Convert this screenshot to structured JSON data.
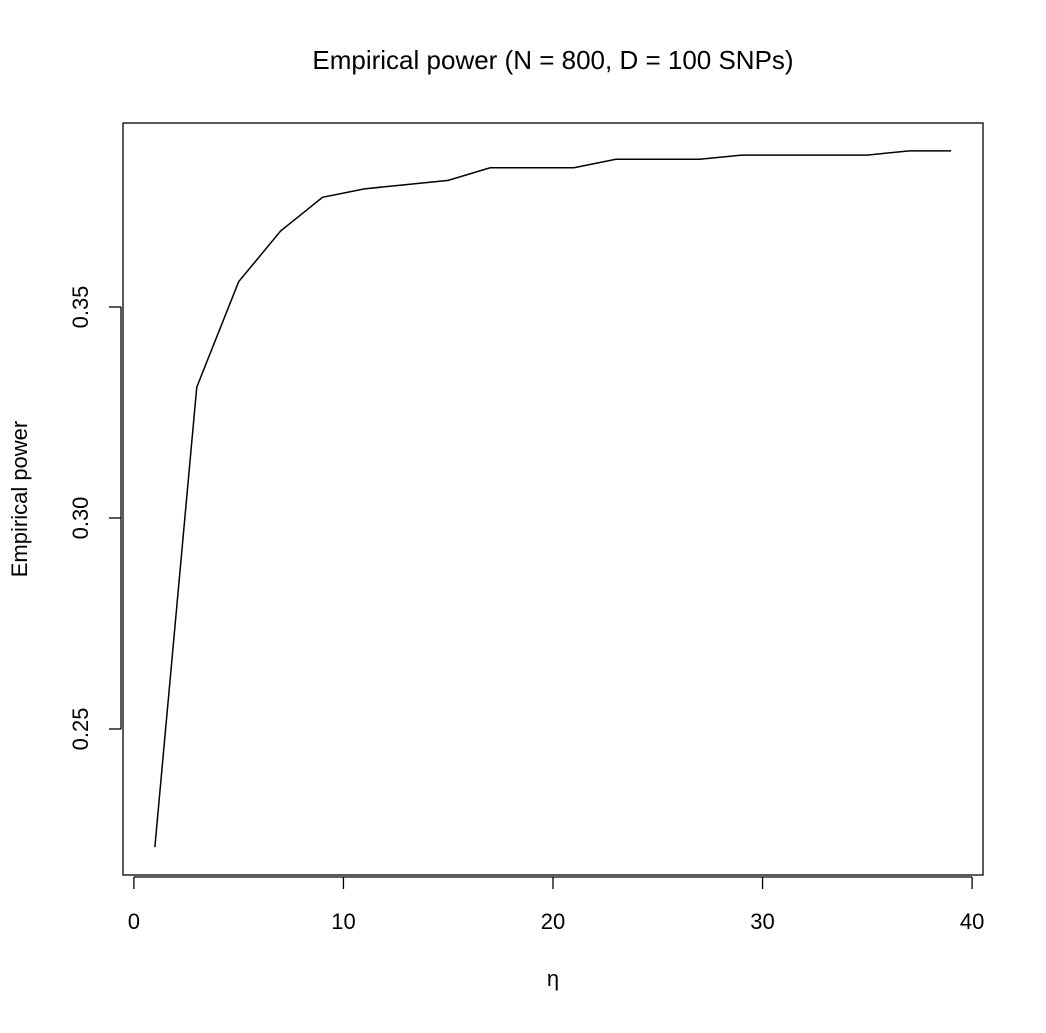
{
  "chart_data": {
    "type": "line",
    "title": "Empirical power (N = 800, D = 100 SNPs)",
    "x_label": "η",
    "y_label": "Empirical power",
    "x": [
      1,
      3,
      5,
      7,
      9,
      11,
      13,
      15,
      17,
      19,
      21,
      23,
      25,
      27,
      29,
      31,
      33,
      35,
      37,
      39
    ],
    "series": [
      {
        "color": "#000000",
        "values": [
          0.222,
          0.331,
          0.356,
          0.368,
          0.376,
          0.378,
          0.379,
          0.38,
          0.383,
          0.383,
          0.383,
          0.385,
          0.385,
          0.385,
          0.386,
          0.386,
          0.386,
          0.386,
          0.387,
          0.387
        ]
      }
    ],
    "xlim": [
      -0.52,
      40.52
    ],
    "ylim": [
      0.2154,
      0.3936
    ],
    "xticks": [
      0,
      10,
      20,
      30,
      40
    ],
    "yticks": [
      0.25,
      {
        "value": 0.3,
        "label": "0.30"
      },
      0.35
    ]
  }
}
